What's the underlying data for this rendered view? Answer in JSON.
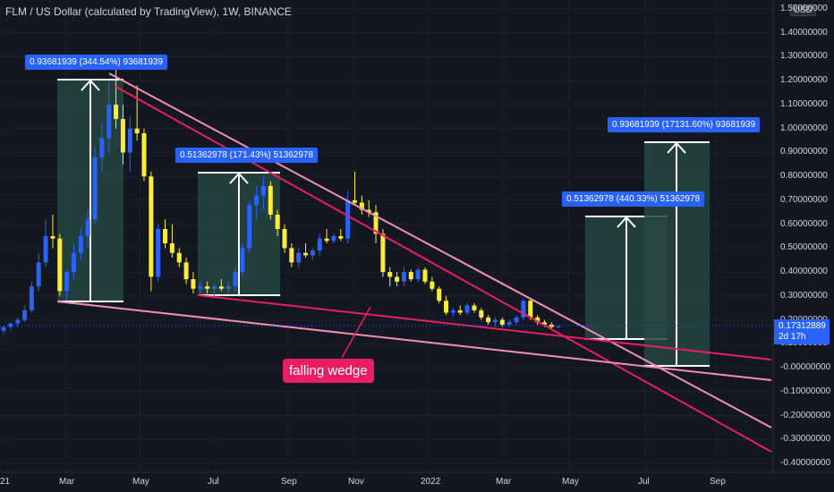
{
  "header": {
    "title": "FLM / US Dollar (calculated by TradingView), 1W, BINANCE",
    "currency": "USD"
  },
  "price_axis": {
    "ticks": [
      "1.50000000",
      "1.40000000",
      "1.30000000",
      "1.20000000",
      "1.10000000",
      "1.00000000",
      "0.90000000",
      "0.80000000",
      "0.70000000",
      "0.60000000",
      "0.50000000",
      "0.40000000",
      "0.30000000",
      "0.20000000",
      "0.10000000",
      "-0.00000000",
      "-0.10000000",
      "-0.20000000",
      "-0.30000000",
      "-0.40000000"
    ],
    "tick_values": [
      1.5,
      1.4,
      1.3,
      1.2,
      1.1,
      1.0,
      0.9,
      0.8,
      0.7,
      0.6,
      0.5,
      0.4,
      0.3,
      0.2,
      0.1,
      0,
      -0.1,
      -0.2,
      -0.3,
      -0.4
    ]
  },
  "time_axis": {
    "ticks": [
      "21",
      "Mar",
      "May",
      "Jul",
      "Sep",
      "Nov",
      "2022",
      "Mar",
      "May",
      "Jul",
      "Sep"
    ]
  },
  "current_price": {
    "price": "0.17312889",
    "countdown": "2d 17h",
    "value": 0.1731
  },
  "measure_labels": [
    {
      "text": "0.93681939 (344.54%) 93681939"
    },
    {
      "text": "0.51362978 (171.43%) 51362978"
    },
    {
      "text": "0.93681939 (17131.60%) 93681939"
    },
    {
      "text": "0.51362978 (440.33%) 51362978"
    }
  ],
  "annotation": {
    "text": "falling wedge"
  },
  "colors": {
    "background": "#131722",
    "up_candle": "#2962ff",
    "down_candle": "#ffeb3b",
    "wedge_line": "#e91e63",
    "channel_line": "#f48fb1",
    "measure_box": "#26463f",
    "label_bg": "#2962ff"
  },
  "chart_data": {
    "type": "candlestick",
    "title": "FLM / US Dollar (calculated by TradingView), 1W, BINANCE",
    "ylim": [
      -0.4,
      1.5
    ],
    "y_unit": "USD",
    "timeframe": "1W",
    "candles": [
      {
        "o": 0.155,
        "h": 0.175,
        "l": 0.14,
        "c": 0.17
      },
      {
        "o": 0.17,
        "h": 0.19,
        "l": 0.155,
        "c": 0.185
      },
      {
        "o": 0.185,
        "h": 0.21,
        "l": 0.17,
        "c": 0.2
      },
      {
        "o": 0.2,
        "h": 0.26,
        "l": 0.19,
        "c": 0.24
      },
      {
        "o": 0.24,
        "h": 0.36,
        "l": 0.23,
        "c": 0.34
      },
      {
        "o": 0.34,
        "h": 0.48,
        "l": 0.32,
        "c": 0.44
      },
      {
        "o": 0.44,
        "h": 0.62,
        "l": 0.42,
        "c": 0.55
      },
      {
        "o": 0.55,
        "h": 0.64,
        "l": 0.5,
        "c": 0.54
      },
      {
        "o": 0.54,
        "h": 0.56,
        "l": 0.3,
        "c": 0.32
      },
      {
        "o": 0.32,
        "h": 0.41,
        "l": 0.28,
        "c": 0.4
      },
      {
        "o": 0.4,
        "h": 0.52,
        "l": 0.37,
        "c": 0.48
      },
      {
        "o": 0.48,
        "h": 0.58,
        "l": 0.45,
        "c": 0.55
      },
      {
        "o": 0.55,
        "h": 0.66,
        "l": 0.5,
        "c": 0.62
      },
      {
        "o": 0.62,
        "h": 0.92,
        "l": 0.6,
        "c": 0.88
      },
      {
        "o": 0.88,
        "h": 1.02,
        "l": 0.82,
        "c": 0.96
      },
      {
        "o": 0.96,
        "h": 1.2,
        "l": 0.9,
        "c": 1.1
      },
      {
        "o": 1.1,
        "h": 1.28,
        "l": 1.0,
        "c": 1.04
      },
      {
        "o": 1.04,
        "h": 1.1,
        "l": 0.85,
        "c": 0.9
      },
      {
        "o": 0.9,
        "h": 1.05,
        "l": 0.82,
        "c": 1.0
      },
      {
        "o": 1.0,
        "h": 1.18,
        "l": 0.95,
        "c": 0.98
      },
      {
        "o": 0.98,
        "h": 1.0,
        "l": 0.78,
        "c": 0.8
      },
      {
        "o": 0.8,
        "h": 0.82,
        "l": 0.32,
        "c": 0.38
      },
      {
        "o": 0.38,
        "h": 0.6,
        "l": 0.36,
        "c": 0.58
      },
      {
        "o": 0.58,
        "h": 0.62,
        "l": 0.5,
        "c": 0.52
      },
      {
        "o": 0.52,
        "h": 0.6,
        "l": 0.46,
        "c": 0.48
      },
      {
        "o": 0.48,
        "h": 0.5,
        "l": 0.42,
        "c": 0.44
      },
      {
        "o": 0.44,
        "h": 0.46,
        "l": 0.35,
        "c": 0.37
      },
      {
        "o": 0.37,
        "h": 0.4,
        "l": 0.31,
        "c": 0.33
      },
      {
        "o": 0.33,
        "h": 0.36,
        "l": 0.3,
        "c": 0.34
      },
      {
        "o": 0.34,
        "h": 0.36,
        "l": 0.31,
        "c": 0.33
      },
      {
        "o": 0.33,
        "h": 0.35,
        "l": 0.3,
        "c": 0.34
      },
      {
        "o": 0.34,
        "h": 0.37,
        "l": 0.32,
        "c": 0.33
      },
      {
        "o": 0.33,
        "h": 0.36,
        "l": 0.31,
        "c": 0.34
      },
      {
        "o": 0.34,
        "h": 0.42,
        "l": 0.32,
        "c": 0.4
      },
      {
        "o": 0.4,
        "h": 0.52,
        "l": 0.38,
        "c": 0.5
      },
      {
        "o": 0.5,
        "h": 0.7,
        "l": 0.48,
        "c": 0.68
      },
      {
        "o": 0.68,
        "h": 0.76,
        "l": 0.62,
        "c": 0.72
      },
      {
        "o": 0.72,
        "h": 0.8,
        "l": 0.66,
        "c": 0.76
      },
      {
        "o": 0.76,
        "h": 0.78,
        "l": 0.62,
        "c": 0.64
      },
      {
        "o": 0.64,
        "h": 0.66,
        "l": 0.55,
        "c": 0.58
      },
      {
        "o": 0.58,
        "h": 0.6,
        "l": 0.48,
        "c": 0.5
      },
      {
        "o": 0.5,
        "h": 0.52,
        "l": 0.42,
        "c": 0.44
      },
      {
        "o": 0.44,
        "h": 0.5,
        "l": 0.42,
        "c": 0.48
      },
      {
        "o": 0.48,
        "h": 0.52,
        "l": 0.46,
        "c": 0.47
      },
      {
        "o": 0.47,
        "h": 0.5,
        "l": 0.45,
        "c": 0.49
      },
      {
        "o": 0.49,
        "h": 0.56,
        "l": 0.47,
        "c": 0.54
      },
      {
        "o": 0.54,
        "h": 0.58,
        "l": 0.52,
        "c": 0.53
      },
      {
        "o": 0.53,
        "h": 0.56,
        "l": 0.52,
        "c": 0.55
      },
      {
        "o": 0.55,
        "h": 0.58,
        "l": 0.53,
        "c": 0.54
      },
      {
        "o": 0.54,
        "h": 0.74,
        "l": 0.52,
        "c": 0.7
      },
      {
        "o": 0.7,
        "h": 0.82,
        "l": 0.68,
        "c": 0.69
      },
      {
        "o": 0.69,
        "h": 0.72,
        "l": 0.64,
        "c": 0.66
      },
      {
        "o": 0.66,
        "h": 0.7,
        "l": 0.63,
        "c": 0.65
      },
      {
        "o": 0.65,
        "h": 0.68,
        "l": 0.52,
        "c": 0.56
      },
      {
        "o": 0.56,
        "h": 0.58,
        "l": 0.38,
        "c": 0.4
      },
      {
        "o": 0.4,
        "h": 0.42,
        "l": 0.34,
        "c": 0.38
      },
      {
        "o": 0.38,
        "h": 0.4,
        "l": 0.34,
        "c": 0.36
      },
      {
        "o": 0.36,
        "h": 0.42,
        "l": 0.34,
        "c": 0.4
      },
      {
        "o": 0.4,
        "h": 0.41,
        "l": 0.36,
        "c": 0.37
      },
      {
        "o": 0.37,
        "h": 0.42,
        "l": 0.36,
        "c": 0.41
      },
      {
        "o": 0.41,
        "h": 0.42,
        "l": 0.35,
        "c": 0.36
      },
      {
        "o": 0.36,
        "h": 0.38,
        "l": 0.32,
        "c": 0.33
      },
      {
        "o": 0.33,
        "h": 0.34,
        "l": 0.27,
        "c": 0.28
      },
      {
        "o": 0.28,
        "h": 0.3,
        "l": 0.22,
        "c": 0.23
      },
      {
        "o": 0.23,
        "h": 0.25,
        "l": 0.21,
        "c": 0.24
      },
      {
        "o": 0.24,
        "h": 0.26,
        "l": 0.22,
        "c": 0.23
      },
      {
        "o": 0.23,
        "h": 0.27,
        "l": 0.22,
        "c": 0.26
      },
      {
        "o": 0.26,
        "h": 0.27,
        "l": 0.23,
        "c": 0.24
      },
      {
        "o": 0.24,
        "h": 0.25,
        "l": 0.2,
        "c": 0.21
      },
      {
        "o": 0.21,
        "h": 0.22,
        "l": 0.18,
        "c": 0.19
      },
      {
        "o": 0.19,
        "h": 0.21,
        "l": 0.17,
        "c": 0.2
      },
      {
        "o": 0.2,
        "h": 0.21,
        "l": 0.17,
        "c": 0.18
      },
      {
        "o": 0.18,
        "h": 0.2,
        "l": 0.17,
        "c": 0.19
      },
      {
        "o": 0.19,
        "h": 0.22,
        "l": 0.18,
        "c": 0.21
      },
      {
        "o": 0.21,
        "h": 0.29,
        "l": 0.2,
        "c": 0.28
      },
      {
        "o": 0.28,
        "h": 0.29,
        "l": 0.2,
        "c": 0.21
      },
      {
        "o": 0.21,
        "h": 0.22,
        "l": 0.18,
        "c": 0.19
      },
      {
        "o": 0.19,
        "h": 0.2,
        "l": 0.17,
        "c": 0.18
      },
      {
        "o": 0.18,
        "h": 0.19,
        "l": 0.165,
        "c": 0.17
      },
      {
        "o": 0.17,
        "h": 0.18,
        "l": 0.165,
        "c": 0.1731
      }
    ]
  }
}
